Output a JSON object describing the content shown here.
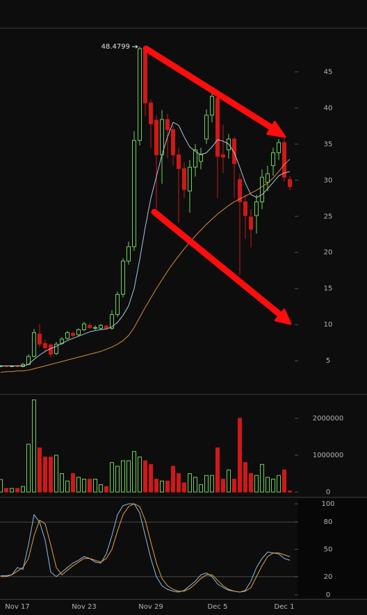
{
  "chart_data": [
    {
      "type": "candlestick",
      "categories": [
        null,
        null,
        null,
        "Nov 17",
        null,
        null,
        null,
        null,
        null,
        null,
        null,
        null,
        null,
        null,
        null,
        "Nov 23",
        null,
        null,
        null,
        null,
        null,
        null,
        null,
        null,
        null,
        null,
        null,
        "Nov 29",
        null,
        null,
        null,
        null,
        null,
        null,
        null,
        null,
        null,
        null,
        null,
        "Dec 5",
        null,
        null,
        null,
        null,
        null,
        null,
        null,
        null,
        null,
        null,
        null,
        "Dec 1",
        null
      ],
      "open": [
        4.2,
        4.3,
        4.2,
        4.3,
        4.2,
        4.5,
        5.6,
        8.7,
        7.4,
        7.2,
        6.0,
        7.4,
        8.1,
        8.8,
        8.6,
        9.3,
        9.9,
        9.5,
        9.5,
        9.8,
        9.5,
        11.4,
        14.2,
        18.8,
        20.8,
        35.5,
        48.3,
        40.7,
        38.3,
        33.5,
        38.4,
        37.0,
        33.5,
        31.6,
        28.5,
        31.8,
        32.6,
        35.7,
        39.0,
        41.4,
        33.5,
        34.2,
        35.7,
        30.1,
        27.0,
        24.9,
        25.1,
        27.0,
        29.7,
        32.0,
        33.8,
        35.2,
        30.1
      ],
      "high": [
        4.4,
        4.4,
        4.4,
        4.5,
        4.7,
        5.9,
        9.4,
        10.1,
        7.9,
        7.4,
        7.6,
        8.3,
        9.1,
        9.0,
        9.5,
        10.4,
        10.2,
        9.9,
        10.1,
        10.0,
        12.0,
        14.6,
        19.2,
        21.5,
        36.8,
        48.4799,
        48.4,
        41.2,
        39.0,
        39.7,
        39.2,
        37.6,
        34.5,
        32.5,
        32.8,
        35.0,
        34.5,
        39.8,
        42.1,
        41.9,
        37.7,
        36.4,
        36.0,
        30.9,
        28.0,
        26.0,
        28.0,
        31.5,
        32.0,
        34.5,
        35.7,
        35.8,
        30.6
      ],
      "low": [
        4.1,
        4.1,
        4.1,
        4.1,
        4.1,
        4.4,
        5.5,
        6.9,
        6.3,
        5.5,
        5.8,
        7.2,
        7.9,
        8.3,
        8.4,
        9.1,
        9.4,
        9.3,
        9.3,
        9.3,
        9.3,
        11.1,
        13.8,
        18.3,
        20.2,
        34.8,
        38.9,
        34.5,
        26.0,
        29.5,
        33.0,
        32.0,
        24.1,
        27.5,
        25.5,
        30.5,
        31.5,
        35.0,
        38.0,
        27.5,
        31.0,
        33.0,
        27.5,
        16.9,
        21.9,
        20.7,
        22.6,
        26.0,
        28.5,
        30.6,
        32.8,
        29.8,
        28.6
      ],
      "close": [
        4.3,
        4.2,
        4.3,
        4.2,
        4.5,
        5.6,
        8.9,
        7.3,
        6.8,
        5.9,
        7.3,
        8.0,
        8.9,
        8.5,
        9.3,
        10.1,
        9.6,
        9.6,
        9.9,
        9.5,
        11.4,
        14.2,
        18.8,
        20.8,
        35.5,
        48.2,
        40.7,
        37.8,
        33.5,
        38.4,
        37.0,
        33.5,
        31.6,
        28.7,
        31.8,
        34.2,
        33.6,
        39.0,
        41.6,
        33.3,
        33.2,
        35.7,
        32.3,
        27.0,
        25.1,
        23.2,
        27.0,
        30.4,
        30.9,
        33.8,
        35.2,
        30.4,
        29.1
      ],
      "up_color": "#6fd35a",
      "down_color": "#d01818",
      "series": [
        {
          "color": "#a9c9e6",
          "values": [
            4.3,
            4.3,
            4.3,
            4.3,
            4.3,
            4.5,
            5.2,
            5.8,
            6.3,
            6.7,
            7.0,
            7.4,
            7.8,
            8.1,
            8.4,
            8.7,
            9.0,
            9.2,
            9.3,
            9.4,
            9.7,
            10.3,
            11.3,
            12.6,
            15.0,
            19.0,
            23.5,
            27.5,
            30.5,
            33.5,
            36.0,
            38.0,
            37.6,
            36.0,
            34.6,
            34.0,
            33.5,
            33.8,
            34.6,
            35.6,
            35.4,
            35.0,
            33.8,
            31.8,
            29.6,
            28.0,
            27.6,
            28.0,
            28.8,
            29.7,
            30.6,
            31.0,
            31.2
          ]
        },
        {
          "color": "#d8913a",
          "values": [
            3.4,
            3.5,
            3.5,
            3.6,
            3.6,
            3.7,
            3.9,
            4.1,
            4.3,
            4.5,
            4.7,
            4.9,
            5.1,
            5.3,
            5.5,
            5.7,
            5.9,
            6.1,
            6.3,
            6.6,
            6.9,
            7.3,
            7.8,
            8.5,
            9.6,
            11.0,
            12.4,
            13.7,
            15.0,
            16.2,
            17.4,
            18.5,
            19.5,
            20.5,
            21.4,
            22.3,
            23.1,
            23.9,
            24.6,
            25.3,
            25.9,
            26.5,
            27.0,
            27.4,
            27.8,
            28.2,
            28.6,
            29.1,
            29.6,
            30.3,
            31.2,
            32.2,
            32.9
          ]
        }
      ],
      "ylim": [
        0.4,
        50.9
      ],
      "yticks": [
        5,
        10,
        15,
        20,
        25,
        30,
        35,
        40,
        45
      ]
    },
    {
      "type": "bar",
      "values": [
        340000,
        100000,
        100000,
        100000,
        150000,
        1300000,
        2500000,
        1200000,
        950000,
        950000,
        1000000,
        500000,
        300000,
        500000,
        400000,
        350000,
        350000,
        350000,
        200000,
        150000,
        800000,
        700000,
        850000,
        850000,
        1100000,
        950000,
        850000,
        750000,
        350000,
        300000,
        300000,
        700000,
        500000,
        250000,
        500000,
        400000,
        200000,
        450000,
        450000,
        1200000,
        350000,
        600000,
        350000,
        2000000,
        800000,
        500000,
        450000,
        750000,
        400000,
        350000,
        450000,
        600000,
        30000
      ],
      "up_color": "#6fd35a",
      "down_color": "#d01818",
      "ylim": [
        -130000,
        2640000
      ],
      "yticks": [
        0,
        1000000,
        2000000
      ]
    },
    {
      "type": "line",
      "series": [
        {
          "color": "#8fbde6",
          "values": [
            21,
            21,
            22,
            30,
            28,
            55,
            88,
            80,
            60,
            25,
            20,
            25,
            30,
            35,
            38,
            42,
            40,
            36,
            35,
            45,
            65,
            88,
            98,
            100,
            100,
            90,
            65,
            40,
            20,
            10,
            6,
            4,
            3,
            5,
            10,
            15,
            22,
            24,
            20,
            12,
            8,
            5,
            4,
            3,
            5,
            15,
            30,
            40,
            47,
            46,
            45,
            40,
            38
          ]
        },
        {
          "color": "#e8a244",
          "values": [
            20,
            20,
            22,
            26,
            30,
            40,
            65,
            82,
            78,
            55,
            30,
            22,
            27,
            32,
            36,
            40,
            40,
            38,
            36,
            40,
            50,
            70,
            88,
            97,
            100,
            97,
            82,
            58,
            35,
            18,
            10,
            6,
            4,
            4,
            7,
            12,
            18,
            22,
            22,
            16,
            10,
            6,
            4,
            3,
            4,
            8,
            20,
            32,
            42,
            46,
            46,
            44,
            42
          ]
        }
      ],
      "guide_lines": [
        80,
        20
      ],
      "guide_color": "#4a4a4a",
      "ylim": [
        -4.6,
        106.9
      ],
      "yticks": [
        0,
        20,
        50,
        80,
        100
      ]
    }
  ]
}
